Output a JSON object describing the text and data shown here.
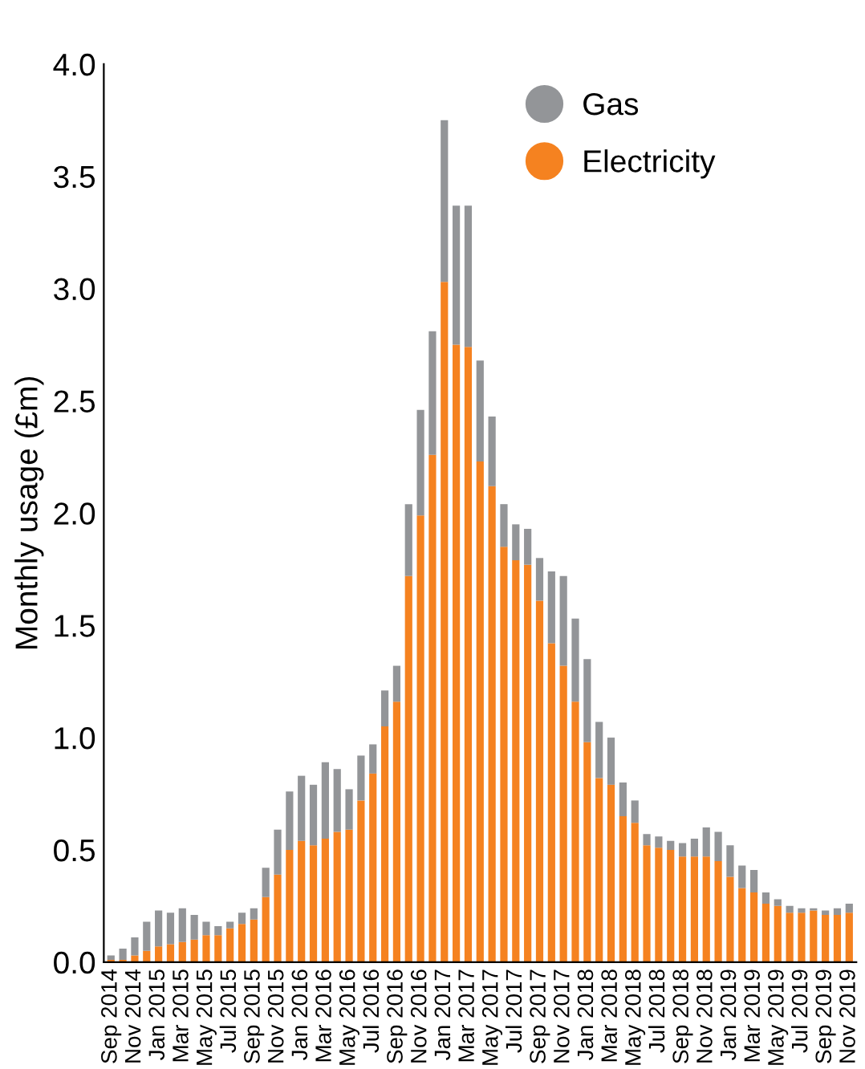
{
  "chart_data": {
    "type": "bar",
    "stacked": true,
    "ylabel": "Monthly usage (£m)",
    "ylim": [
      0,
      4.0
    ],
    "yticks": [
      {
        "value": 0,
        "label": "0.0"
      },
      {
        "value": 0.5,
        "label": "0.5"
      },
      {
        "value": 1,
        "label": "1.0"
      },
      {
        "value": 1.5,
        "label": "1.5"
      },
      {
        "value": 2,
        "label": "2.0"
      },
      {
        "value": 2.5,
        "label": "2.5"
      },
      {
        "value": 3,
        "label": "3.0"
      },
      {
        "value": 3.5,
        "label": "3.5"
      },
      {
        "value": 4,
        "label": "4.0"
      }
    ],
    "categories": [
      "Sep 2014",
      null,
      "Nov 2014",
      null,
      "Jan 2015",
      null,
      "Mar 2015",
      null,
      "May 2015",
      null,
      "Jul 2015",
      null,
      "Sep 2015",
      null,
      "Nov 2015",
      null,
      "Jan 2016",
      null,
      "Mar 2016",
      null,
      "May 2016",
      null,
      "Jul 2016",
      null,
      "Sep 2016",
      null,
      "Nov 2016",
      null,
      "Jan 2017",
      null,
      "Mar 2017",
      null,
      "May 2017",
      null,
      "Jul 2017",
      null,
      "Sep 2017",
      null,
      "Nov 2017",
      null,
      "Jan 2018",
      null,
      "Mar 2018",
      null,
      "May 2018",
      null,
      "Jul 2018",
      null,
      "Sep 2018",
      null,
      "Nov 2018",
      null,
      "Jan 2019",
      null,
      "Mar 2019",
      null,
      "May 2019",
      null,
      "Jul 2019",
      null,
      "Sep 2019",
      null,
      "Nov 2019"
    ],
    "series": [
      {
        "name": "Electricity",
        "color": "#f58220",
        "values": [
          0.01,
          0.01,
          0.03,
          0.05,
          0.07,
          0.08,
          0.09,
          0.1,
          0.12,
          0.12,
          0.15,
          0.17,
          0.19,
          0.29,
          0.39,
          0.5,
          0.54,
          0.52,
          0.55,
          0.58,
          0.59,
          0.72,
          0.84,
          1.05,
          1.16,
          1.72,
          1.99,
          2.26,
          3.03,
          2.75,
          2.74,
          2.23,
          2.12,
          1.85,
          1.79,
          1.77,
          1.61,
          1.42,
          1.32,
          1.16,
          0.98,
          0.82,
          0.79,
          0.65,
          0.62,
          0.52,
          0.51,
          0.5,
          0.47,
          0.47,
          0.47,
          0.45,
          0.38,
          0.33,
          0.31,
          0.26,
          0.25,
          0.22,
          0.22,
          0.23,
          0.21,
          0.21,
          0.22
        ]
      },
      {
        "name": "Gas",
        "color": "#939598",
        "values": [
          0.02,
          0.05,
          0.08,
          0.13,
          0.16,
          0.14,
          0.15,
          0.11,
          0.06,
          0.04,
          0.03,
          0.05,
          0.05,
          0.13,
          0.2,
          0.26,
          0.29,
          0.27,
          0.34,
          0.28,
          0.18,
          0.2,
          0.13,
          0.16,
          0.16,
          0.32,
          0.47,
          0.55,
          0.72,
          0.62,
          0.63,
          0.45,
          0.31,
          0.19,
          0.16,
          0.16,
          0.19,
          0.32,
          0.4,
          0.37,
          0.37,
          0.25,
          0.21,
          0.15,
          0.1,
          0.05,
          0.05,
          0.04,
          0.06,
          0.08,
          0.13,
          0.13,
          0.14,
          0.1,
          0.1,
          0.05,
          0.03,
          0.03,
          0.02,
          0.01,
          0.02,
          0.03,
          0.04
        ]
      }
    ],
    "legend": "top right",
    "marker": "circle",
    "grid": false
  }
}
